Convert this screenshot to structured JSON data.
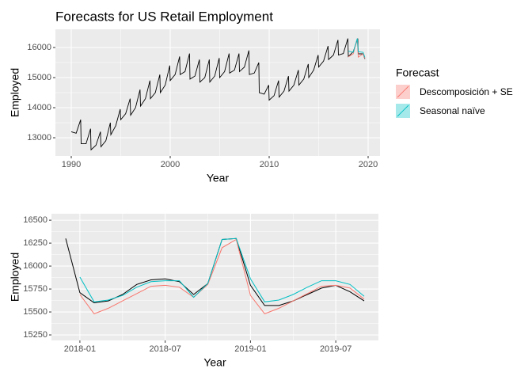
{
  "chart_data": [
    {
      "type": "line",
      "title": "Forecasts for US Retail Employment",
      "x_label": "Year",
      "y_label": "Employed",
      "xlim": [
        1988.4,
        2021.2
      ],
      "ylim": [
        12395,
        16605
      ],
      "xticks": [
        1990,
        2000,
        2010,
        2020
      ],
      "yticks": [
        13000,
        14000,
        15000,
        16000
      ],
      "grid": true,
      "legend": {
        "title": "Forecast",
        "position": "right"
      },
      "series": [
        {
          "color": "#000000",
          "x": [
            1990.0,
            1990.5,
            1990.95,
            1991.0,
            1991.5,
            1991.95,
            1992.0,
            1992.5,
            1992.95,
            1993.0,
            1993.5,
            1993.95,
            1994.0,
            1994.5,
            1994.95,
            1995.0,
            1995.5,
            1995.95,
            1996.0,
            1996.5,
            1996.95,
            1997.0,
            1997.5,
            1997.95,
            1998.0,
            1998.5,
            1998.95,
            1999.0,
            1999.5,
            1999.95,
            2000.0,
            2000.5,
            2000.95,
            2001.0,
            2001.5,
            2001.95,
            2002.0,
            2002.5,
            2002.95,
            2003.0,
            2003.5,
            2003.95,
            2004.0,
            2004.5,
            2004.95,
            2005.0,
            2005.5,
            2005.95,
            2006.0,
            2006.5,
            2006.95,
            2007.0,
            2007.5,
            2007.95,
            2008.0,
            2008.5,
            2008.95,
            2009.0,
            2009.5,
            2009.95,
            2010.0,
            2010.5,
            2010.95,
            2011.0,
            2011.5,
            2011.95,
            2012.0,
            2012.5,
            2012.95,
            2013.0,
            2013.5,
            2013.95,
            2014.0,
            2014.5,
            2014.95,
            2015.0,
            2015.5,
            2015.95,
            2016.0,
            2016.5,
            2016.95,
            2017.0,
            2017.5,
            2017.95,
            2018.0,
            2018.5,
            2018.95,
            2019.0,
            2019.5,
            2019.67
          ],
          "values": [
            13200,
            13150,
            13600,
            12800,
            12800,
            13300,
            12600,
            12750,
            13200,
            12700,
            12900,
            13500,
            13100,
            13400,
            13950,
            13600,
            13800,
            14300,
            13750,
            14000,
            14600,
            14050,
            14300,
            14900,
            14300,
            14500,
            15100,
            14500,
            14750,
            15400,
            14900,
            15100,
            15700,
            15100,
            15200,
            15800,
            14950,
            15050,
            15600,
            14850,
            15000,
            15600,
            14850,
            15050,
            15650,
            15000,
            15200,
            15800,
            15150,
            15250,
            15800,
            15200,
            15350,
            15900,
            15100,
            15150,
            15500,
            14500,
            14450,
            14750,
            14250,
            14400,
            14900,
            14350,
            14550,
            15050,
            14550,
            14750,
            15250,
            14750,
            14950,
            15450,
            15000,
            15250,
            15750,
            15350,
            15550,
            16050,
            15600,
            15750,
            16250,
            15750,
            15800,
            16300,
            15700,
            15860,
            16300,
            15790,
            15790,
            15620
          ]
        },
        {
          "name": "Descomposición + SE",
          "color": "#F8766D",
          "x": [
            2018.0,
            2018.5,
            2018.9,
            2019.0,
            2019.5,
            2019.67
          ],
          "values": [
            15690,
            15790,
            16290,
            15680,
            15790,
            15640
          ]
        },
        {
          "name": "Seasonal naïve",
          "color": "#00BFC4",
          "x": [
            2018.0,
            2018.5,
            2018.9,
            2019.0,
            2019.5,
            2019.67
          ],
          "values": [
            15880,
            15840,
            16300,
            15860,
            15840,
            15670
          ]
        }
      ]
    },
    {
      "type": "line",
      "x_label": "Year",
      "y_label": "Employed",
      "x": [
        "2017-12",
        "2018-01",
        "2018-02",
        "2018-03",
        "2018-04",
        "2018-05",
        "2018-06",
        "2018-07",
        "2018-08",
        "2018-09",
        "2018-10",
        "2018-11",
        "2018-12",
        "2019-01",
        "2019-02",
        "2019-03",
        "2019-04",
        "2019-05",
        "2019-06",
        "2019-07",
        "2019-08",
        "2019-09"
      ],
      "xlim": [
        "2017-11",
        "2019-10"
      ],
      "ylim": [
        15190,
        16570
      ],
      "xticks": [
        "2018-01",
        "2018-07",
        "2019-01",
        "2019-07"
      ],
      "yticks": [
        15250,
        15500,
        15750,
        16000,
        16250,
        16500
      ],
      "grid": true,
      "series": [
        {
          "color": "#000000",
          "values": [
            16300,
            15710,
            15600,
            15620,
            15690,
            15800,
            15850,
            15860,
            15830,
            15690,
            15810,
            16290,
            16300,
            15790,
            15570,
            15570,
            15620,
            15690,
            15760,
            15790,
            15720,
            15620
          ]
        },
        {
          "color": "#F8766D",
          "values": [
            null,
            15690,
            15480,
            15540,
            15620,
            15700,
            15780,
            15790,
            15770,
            15660,
            15800,
            16200,
            16290,
            15680,
            15480,
            15540,
            15620,
            15700,
            15780,
            15790,
            15760,
            15640
          ]
        },
        {
          "color": "#00BFC4",
          "values": [
            null,
            15880,
            15610,
            15630,
            15680,
            15770,
            15830,
            15840,
            15840,
            15660,
            15810,
            16290,
            16300,
            15860,
            15610,
            15630,
            15690,
            15770,
            15840,
            15840,
            15800,
            15670
          ]
        }
      ]
    }
  ]
}
